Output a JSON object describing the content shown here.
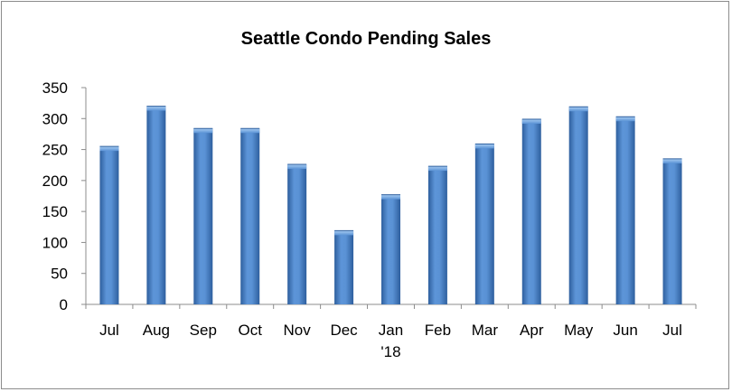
{
  "chart_data": {
    "type": "bar",
    "title": "Seattle Condo Pending Sales",
    "xlabel": "",
    "ylabel": "",
    "ylim": [
      0,
      350
    ],
    "yticks": [
      0,
      50,
      100,
      150,
      200,
      250,
      300,
      350
    ],
    "grid": false,
    "legend": "none",
    "categories": [
      "Jul",
      "Aug",
      "Sep",
      "Oct",
      "Nov",
      "Dec",
      "Jan '18",
      "Feb",
      "Mar",
      "Apr",
      "May",
      "Jun",
      "Jul"
    ],
    "category_labels": [
      [
        "Jul"
      ],
      [
        "Aug"
      ],
      [
        "Sep"
      ],
      [
        "Oct"
      ],
      [
        "Nov"
      ],
      [
        "Dec"
      ],
      [
        "Jan",
        "'18"
      ],
      [
        "Feb"
      ],
      [
        "Mar"
      ],
      [
        "Apr"
      ],
      [
        "May"
      ],
      [
        "Jun"
      ],
      [
        "Jul"
      ]
    ],
    "values": [
      255,
      320,
      284,
      284,
      226,
      119,
      177,
      223,
      259,
      299,
      319,
      303,
      235
    ],
    "colors": {
      "bar": "#4f86cc",
      "bar_dark": "#2e5f9e",
      "bar_light": "#8ab6e8"
    }
  }
}
